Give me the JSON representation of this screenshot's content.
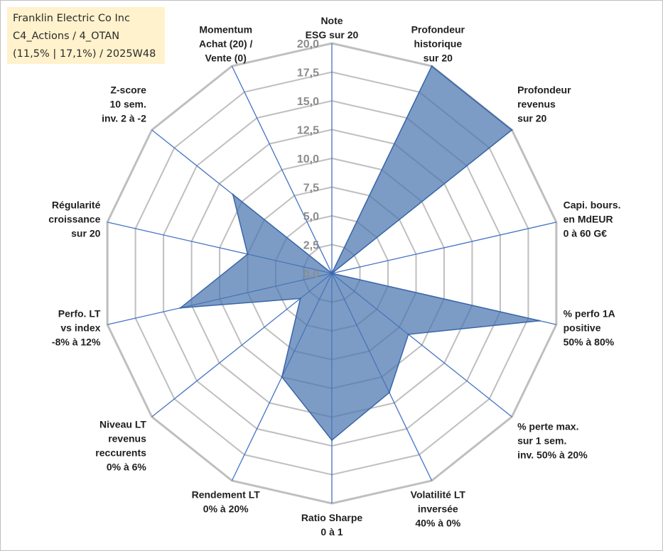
{
  "info_box": {
    "line1": "Franklin Electric Co Inc",
    "line2": "C4_Actions / 4_OTAN",
    "line3": "(11,5% | 17,1%) / 2025W48"
  },
  "chart_data": {
    "type": "radar",
    "title": "",
    "rlim": [
      0,
      20
    ],
    "grid": true,
    "tick_labels": [
      "0,0",
      "2,5",
      "5,0",
      "7,5",
      "10,0",
      "12,5",
      "15,0",
      "17,5",
      "20,0"
    ],
    "axes": [
      [
        "Note",
        "ESG sur 20"
      ],
      [
        "Profondeur",
        "historique",
        "sur 20"
      ],
      [
        "Profondeur",
        "revenus",
        "sur 20"
      ],
      [
        "Capi. bours.",
        "en MdEUR",
        "0 à 60 G€"
      ],
      [
        "% perfo 1A",
        "positive",
        "50% à 80%"
      ],
      [
        "% perte max.",
        "sur 1 sem.",
        "inv. 50% à 20%"
      ],
      [
        "Volatilité LT",
        "inversée",
        "40% à 0%"
      ],
      [
        "Ratio Sharpe",
        "0 à 1"
      ],
      [
        "Rendement LT",
        "0% à 20%"
      ],
      [
        "Niveau LT",
        "revenus",
        "reccurents",
        "0% à 6%"
      ],
      [
        "Perfo. LT",
        "vs index",
        "-8% à 12%"
      ],
      [
        "Régularité",
        "croissance",
        "sur 20"
      ],
      [
        "Z-score",
        "10 sem.",
        "inv. 2 à -2"
      ],
      [
        "Momentum",
        "Achat (20) /",
        "Vente (0)"
      ]
    ],
    "series": [
      {
        "values": [
          0,
          20,
          20,
          0,
          18.5,
          8.5,
          11.5,
          14.5,
          10,
          3.5,
          13.5,
          7.5,
          11,
          0
        ],
        "color": "#4a76b0",
        "line_color": "#3a66a8"
      }
    ],
    "grid_color": "#bfbfbf",
    "axis_color": "#4472c4"
  }
}
